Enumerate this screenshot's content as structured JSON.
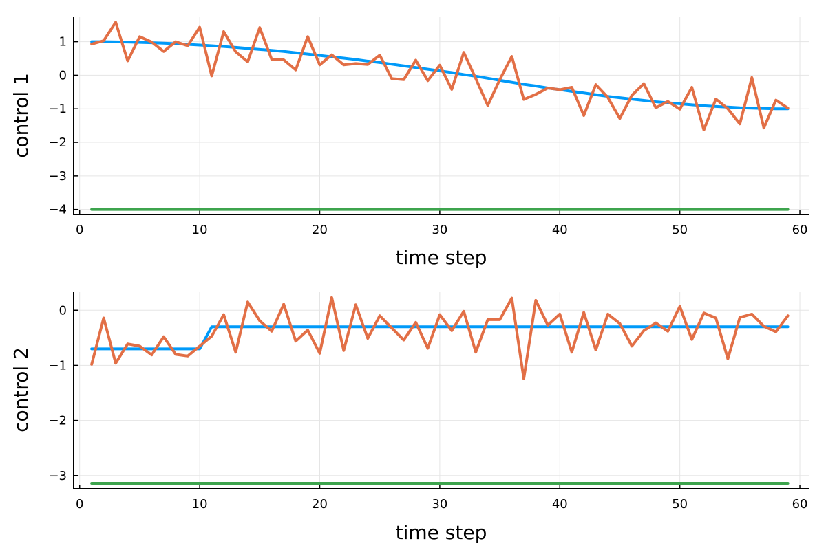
{
  "colors": {
    "series1": "#009af9",
    "series2": "#e26f46",
    "series3": "#3da44d",
    "grid": "#e5e5e5",
    "axis": "#000000"
  },
  "chart_data": [
    {
      "type": "line",
      "title": "",
      "xlabel": "time step",
      "ylabel": "control 1",
      "xlim": [
        -0.5,
        60.8
      ],
      "ylim": [
        -4.15,
        1.75
      ],
      "xticks": [
        0,
        10,
        20,
        30,
        40,
        50,
        60
      ],
      "yticks": [
        1,
        0,
        -1,
        -2,
        -3,
        -4
      ],
      "xtick_labels": [
        "0",
        "10",
        "20",
        "30",
        "40",
        "50",
        "60"
      ],
      "ytick_labels": [
        "1",
        "0",
        "−1",
        "−2",
        "−3",
        "−4"
      ],
      "grid": true,
      "legend": "none",
      "x": [
        1,
        2,
        3,
        4,
        5,
        6,
        7,
        8,
        9,
        10,
        11,
        12,
        13,
        14,
        15,
        16,
        17,
        18,
        19,
        20,
        21,
        22,
        23,
        24,
        25,
        26,
        27,
        28,
        29,
        30,
        31,
        32,
        33,
        34,
        35,
        36,
        37,
        38,
        39,
        40,
        41,
        42,
        43,
        44,
        45,
        46,
        47,
        48,
        49,
        50,
        51,
        52,
        53,
        54,
        55,
        56,
        57,
        58,
        59
      ],
      "series": [
        {
          "values": [
            1.0,
            1.0,
            0.995,
            0.99,
            0.98,
            0.97,
            0.955,
            0.94,
            0.92,
            0.9,
            0.88,
            0.855,
            0.83,
            0.8,
            0.77,
            0.74,
            0.71,
            0.67,
            0.63,
            0.59,
            0.55,
            0.51,
            0.47,
            0.42,
            0.38,
            0.33,
            0.28,
            0.23,
            0.18,
            0.13,
            0.08,
            0.02,
            -0.03,
            -0.09,
            -0.15,
            -0.21,
            -0.27,
            -0.32,
            -0.38,
            -0.43,
            -0.48,
            -0.53,
            -0.58,
            -0.63,
            -0.67,
            -0.71,
            -0.75,
            -0.79,
            -0.82,
            -0.85,
            -0.88,
            -0.91,
            -0.93,
            -0.95,
            -0.97,
            -0.98,
            -0.99,
            -1.0,
            -1.0
          ]
        },
        {
          "values": [
            0.93,
            1.03,
            1.58,
            0.43,
            1.15,
            0.99,
            0.71,
            1.0,
            0.88,
            1.43,
            -0.02,
            1.3,
            0.7,
            0.4,
            1.42,
            0.47,
            0.46,
            0.16,
            1.15,
            0.31,
            0.61,
            0.31,
            0.35,
            0.32,
            0.6,
            -0.1,
            -0.13,
            0.45,
            -0.16,
            0.3,
            -0.42,
            0.68,
            -0.1,
            -0.9,
            -0.13,
            0.56,
            -0.72,
            -0.57,
            -0.38,
            -0.43,
            -0.36,
            -1.2,
            -0.28,
            -0.66,
            -1.29,
            -0.6,
            -0.25,
            -0.97,
            -0.78,
            -1.01,
            -0.36,
            -1.63,
            -0.71,
            -1.0,
            -1.45,
            -0.07,
            -1.57,
            -0.74,
            -0.98
          ]
        },
        {
          "values": [
            -4,
            -4,
            -4,
            -4,
            -4,
            -4,
            -4,
            -4,
            -4,
            -4,
            -4,
            -4,
            -4,
            -4,
            -4,
            -4,
            -4,
            -4,
            -4,
            -4,
            -4,
            -4,
            -4,
            -4,
            -4,
            -4,
            -4,
            -4,
            -4,
            -4,
            -4,
            -4,
            -4,
            -4,
            -4,
            -4,
            -4,
            -4,
            -4,
            -4,
            -4,
            -4,
            -4,
            -4,
            -4,
            -4,
            -4,
            -4,
            -4,
            -4,
            -4,
            -4,
            -4,
            -4,
            -4,
            -4,
            -4,
            -4,
            -4
          ]
        }
      ]
    },
    {
      "type": "line",
      "title": "",
      "xlabel": "time step",
      "ylabel": "control 2",
      "xlim": [
        -0.5,
        60.8
      ],
      "ylim": [
        -3.24,
        0.34
      ],
      "xticks": [
        0,
        10,
        20,
        30,
        40,
        50,
        60
      ],
      "yticks": [
        0,
        -1,
        -2,
        -3
      ],
      "xtick_labels": [
        "0",
        "10",
        "20",
        "30",
        "40",
        "50",
        "60"
      ],
      "ytick_labels": [
        "0",
        "−1",
        "−2",
        "−3"
      ],
      "grid": true,
      "legend": "none",
      "x": [
        1,
        2,
        3,
        4,
        5,
        6,
        7,
        8,
        9,
        10,
        11,
        12,
        13,
        14,
        15,
        16,
        17,
        18,
        19,
        20,
        21,
        22,
        23,
        24,
        25,
        26,
        27,
        28,
        29,
        30,
        31,
        32,
        33,
        34,
        35,
        36,
        37,
        38,
        39,
        40,
        41,
        42,
        43,
        44,
        45,
        46,
        47,
        48,
        49,
        50,
        51,
        52,
        53,
        54,
        55,
        56,
        57,
        58,
        59
      ],
      "series": [
        {
          "values": [
            -0.7,
            -0.7,
            -0.7,
            -0.7,
            -0.7,
            -0.7,
            -0.7,
            -0.7,
            -0.7,
            -0.7,
            -0.3,
            -0.3,
            -0.3,
            -0.3,
            -0.3,
            -0.3,
            -0.3,
            -0.3,
            -0.3,
            -0.3,
            -0.3,
            -0.3,
            -0.3,
            -0.3,
            -0.3,
            -0.3,
            -0.3,
            -0.3,
            -0.3,
            -0.3,
            -0.3,
            -0.3,
            -0.3,
            -0.3,
            -0.3,
            -0.3,
            -0.3,
            -0.3,
            -0.3,
            -0.3,
            -0.3,
            -0.3,
            -0.3,
            -0.3,
            -0.3,
            -0.3,
            -0.3,
            -0.3,
            -0.3,
            -0.3,
            -0.3,
            -0.3,
            -0.3,
            -0.3,
            -0.3,
            -0.3,
            -0.3,
            -0.3,
            -0.3
          ]
        },
        {
          "values": [
            -0.98,
            -0.14,
            -0.96,
            -0.61,
            -0.65,
            -0.81,
            -0.48,
            -0.8,
            -0.83,
            -0.65,
            -0.47,
            -0.08,
            -0.76,
            0.15,
            -0.19,
            -0.38,
            0.11,
            -0.56,
            -0.36,
            -0.78,
            0.23,
            -0.73,
            0.1,
            -0.51,
            -0.1,
            -0.32,
            -0.54,
            -0.22,
            -0.69,
            -0.08,
            -0.37,
            -0.02,
            -0.76,
            -0.17,
            -0.17,
            0.22,
            -1.24,
            0.18,
            -0.27,
            -0.07,
            -0.76,
            -0.04,
            -0.72,
            -0.07,
            -0.24,
            -0.65,
            -0.37,
            -0.23,
            -0.38,
            0.07,
            -0.53,
            -0.05,
            -0.14,
            -0.88,
            -0.13,
            -0.07,
            -0.29,
            -0.39,
            -0.1
          ]
        },
        {
          "values": [
            -3.14,
            -3.14,
            -3.14,
            -3.14,
            -3.14,
            -3.14,
            -3.14,
            -3.14,
            -3.14,
            -3.14,
            -3.14,
            -3.14,
            -3.14,
            -3.14,
            -3.14,
            -3.14,
            -3.14,
            -3.14,
            -3.14,
            -3.14,
            -3.14,
            -3.14,
            -3.14,
            -3.14,
            -3.14,
            -3.14,
            -3.14,
            -3.14,
            -3.14,
            -3.14,
            -3.14,
            -3.14,
            -3.14,
            -3.14,
            -3.14,
            -3.14,
            -3.14,
            -3.14,
            -3.14,
            -3.14,
            -3.14,
            -3.14,
            -3.14,
            -3.14,
            -3.14,
            -3.14,
            -3.14,
            -3.14,
            -3.14,
            -3.14,
            -3.14,
            -3.14,
            -3.14,
            -3.14,
            -3.14,
            -3.14,
            -3.14,
            -3.14,
            -3.14
          ]
        }
      ]
    }
  ]
}
